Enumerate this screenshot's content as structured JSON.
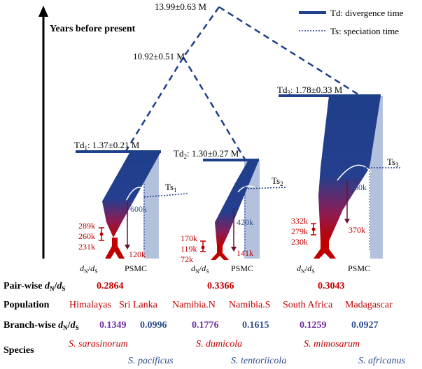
{
  "axis_label": "Years before present",
  "legend": {
    "td": "Td: divergence time",
    "ts": "Ts: speciation time"
  },
  "root_node": "13.99±0.63 M",
  "inner_node": "10.92±0.51 M",
  "clades": [
    {
      "td_prefix": "Td",
      "td_sub": "1",
      "td_value": ": 1.37±0.21 M",
      "ts_prefix": "Ts",
      "ts_sub": "1",
      "psmc_top": "600k",
      "psmc_bottom": "120k",
      "dnds_times": [
        "289k",
        "260k",
        "231k"
      ],
      "dnds_label": "d",
      "psmc_label": "PSMC",
      "pairwise": "0.2864",
      "populations": [
        "Himalayas",
        "Sri Lanka"
      ],
      "branchwise": [
        "0.1349",
        "0.0996"
      ],
      "species": [
        "S. sarasinorum",
        "S. pacificus"
      ]
    },
    {
      "td_prefix": "Td",
      "td_sub": "2",
      "td_value": ": 1.30±0.27 M",
      "ts_prefix": "Ts",
      "ts_sub": "2",
      "psmc_top": "420k",
      "psmc_bottom": "141k",
      "dnds_times": [
        "170k",
        "119k",
        "72k"
      ],
      "dnds_label": "d",
      "psmc_label": "PSMC",
      "pairwise": "0.3366",
      "populations": [
        "Namibia.N",
        "Namibia.S"
      ],
      "branchwise": [
        "0.1776",
        "0.1615"
      ],
      "species": [
        "S. dumicola",
        "S. tentoriicola"
      ]
    },
    {
      "td_prefix": "Td",
      "td_sub": "3",
      "td_value": ": 1.78±0.33 M",
      "ts_prefix": "Ts",
      "ts_sub": "3",
      "psmc_top": "960k",
      "psmc_bottom": "370k",
      "dnds_times": [
        "332k",
        "279k",
        "230k"
      ],
      "dnds_label": "d",
      "psmc_label": "PSMC",
      "pairwise": "0.3043",
      "populations": [
        "South Africa",
        "Madagascar"
      ],
      "branchwise": [
        "0.1259",
        "0.0927"
      ],
      "species": [
        "S. mimosarum",
        "S. africanus"
      ]
    }
  ],
  "rows": {
    "pairwise_prefix": "Pair-wise ",
    "population": "Population",
    "branchwise_prefix": "Branch-wise ",
    "species": "Species",
    "dn": "d",
    "dn_sub": "N",
    "slash": "/",
    "ds_sub": "S"
  },
  "colors": {
    "navy": "#1f3f8a",
    "red": "#c00000",
    "purple": "#7030a0",
    "blue_text": "#2e4f8e",
    "psmc_bar": "#b4c1dc"
  }
}
